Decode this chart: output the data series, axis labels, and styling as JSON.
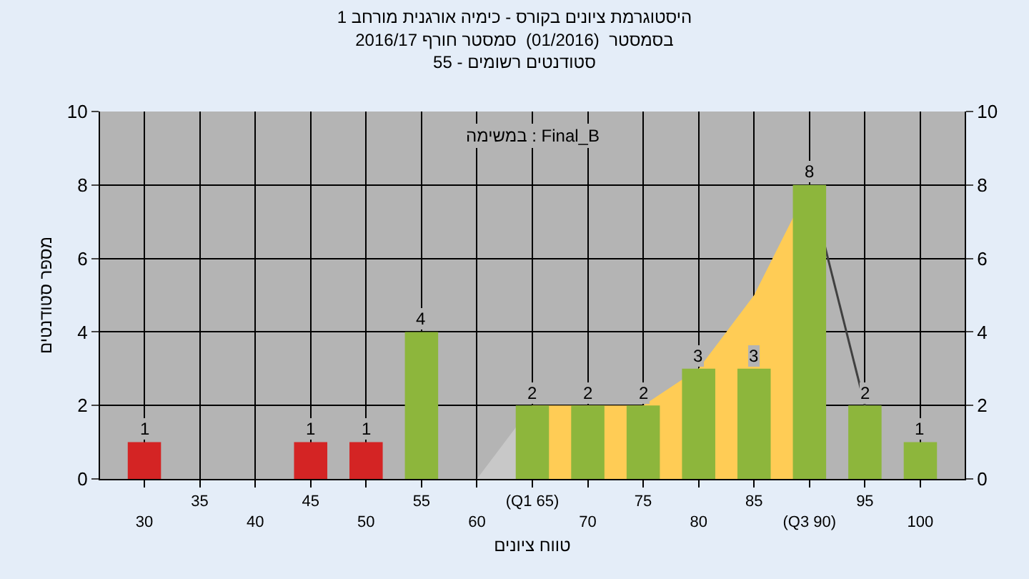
{
  "chart_data": {
    "type": "bar",
    "title": "היסטוגרמת ציונים בקורס - כימיה אורגנית מורחב 1",
    "subtitle": "בסמסטר  (01/2016)  סמסטר חורף 2016/17\nסטודנטים רשומים - 55",
    "xlabel": "טווח ציונים",
    "ylabel": "מספר סטודנטים",
    "annotations": [
      "במשימה : Final_B"
    ],
    "categories": [
      "30",
      "35",
      "40",
      "45",
      "50",
      "55",
      "60",
      "(Q1 65)",
      "70",
      "75",
      "80",
      "85",
      "(Q3 90)",
      "95",
      "100"
    ],
    "series": [
      {
        "values": [
          1,
          0,
          0,
          1,
          1,
          4,
          0,
          2,
          2,
          2,
          3,
          3,
          8,
          2,
          1
        ],
        "colors": [
          "#d42424",
          "#8db63c",
          "#8db63c",
          "#d42424",
          "#d42424",
          "#8db63c",
          "#8db63c",
          "#8db63c",
          "#8db63c",
          "#8db63c",
          "#8db63c",
          "#8db63c",
          "#8db63c",
          "#8db63c",
          "#8db63c"
        ],
        "value_labels": [
          "1",
          null,
          null,
          "1",
          "1",
          "4",
          null,
          "2",
          "2",
          "2",
          "3",
          "3",
          "8",
          "2",
          "1"
        ]
      },
      {
        "type": "area",
        "color": "#c8c8c8",
        "x": [
          "60",
          "(Q1 65)"
        ],
        "values": [
          0,
          2
        ]
      },
      {
        "type": "area",
        "color": "#ffcc55",
        "x": [
          "(Q1 65)",
          "70",
          "75",
          "80",
          "85",
          "(Q3 90)"
        ],
        "values": [
          2,
          2,
          2,
          3,
          5,
          8
        ]
      },
      {
        "type": "line",
        "color": "#404040",
        "x": [
          "(Q3 90)",
          "95"
        ],
        "values": [
          8,
          2
        ]
      }
    ],
    "ylim": [
      0,
      10
    ],
    "yticks": [
      0,
      2,
      4,
      6,
      8,
      10
    ],
    "y2lim": [
      0,
      10
    ],
    "y2ticks": [
      0,
      2,
      4,
      6,
      8,
      10
    ],
    "grid": true
  }
}
